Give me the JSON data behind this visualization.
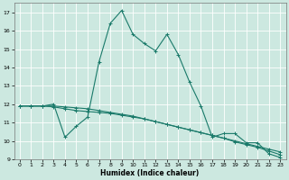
{
  "xlabel": "Humidex (Indice chaleur)",
  "bg_color": "#cce8e0",
  "grid_color": "#ffffff",
  "line_color": "#1a7a6a",
  "ylim": [
    9,
    17.5
  ],
  "xlim": [
    -0.5,
    23.5
  ],
  "yticks": [
    9,
    10,
    11,
    12,
    13,
    14,
    15,
    16,
    17
  ],
  "xticks": [
    0,
    1,
    2,
    3,
    4,
    5,
    6,
    7,
    8,
    9,
    10,
    11,
    12,
    13,
    14,
    15,
    16,
    17,
    18,
    19,
    20,
    21,
    22,
    23
  ],
  "line1_x": [
    0,
    1,
    2,
    3,
    4,
    5,
    6,
    7,
    8,
    9,
    10,
    11,
    12,
    13,
    14,
    15,
    16,
    17,
    18,
    19,
    20,
    21,
    22,
    23
  ],
  "line1_y": [
    11.9,
    11.9,
    11.9,
    11.9,
    11.85,
    11.8,
    11.75,
    11.65,
    11.55,
    11.45,
    11.35,
    11.2,
    11.05,
    10.9,
    10.75,
    10.6,
    10.45,
    10.3,
    10.15,
    10.0,
    9.85,
    9.7,
    9.55,
    9.4
  ],
  "line2_x": [
    0,
    1,
    2,
    3,
    4,
    5,
    6,
    7,
    8,
    9,
    10,
    11,
    12,
    13,
    14,
    15,
    16,
    17,
    18,
    19,
    20,
    21,
    22,
    23
  ],
  "line2_y": [
    11.9,
    11.9,
    11.9,
    11.85,
    11.75,
    11.65,
    11.6,
    11.55,
    11.5,
    11.4,
    11.3,
    11.2,
    11.05,
    10.9,
    10.75,
    10.6,
    10.45,
    10.3,
    10.15,
    9.95,
    9.8,
    9.65,
    9.45,
    9.25
  ],
  "line3_x": [
    0,
    1,
    2,
    3,
    4,
    5,
    6,
    7,
    8,
    9,
    10,
    11,
    12,
    13,
    14,
    15,
    16,
    17,
    18,
    19,
    20,
    21,
    22,
    23
  ],
  "line3_y": [
    11.9,
    11.9,
    11.9,
    12.0,
    10.2,
    10.8,
    11.3,
    14.3,
    16.4,
    17.1,
    15.8,
    15.3,
    14.9,
    15.8,
    14.7,
    13.2,
    11.9,
    10.2,
    10.4,
    10.4,
    9.9,
    9.9,
    9.3,
    9.1
  ]
}
